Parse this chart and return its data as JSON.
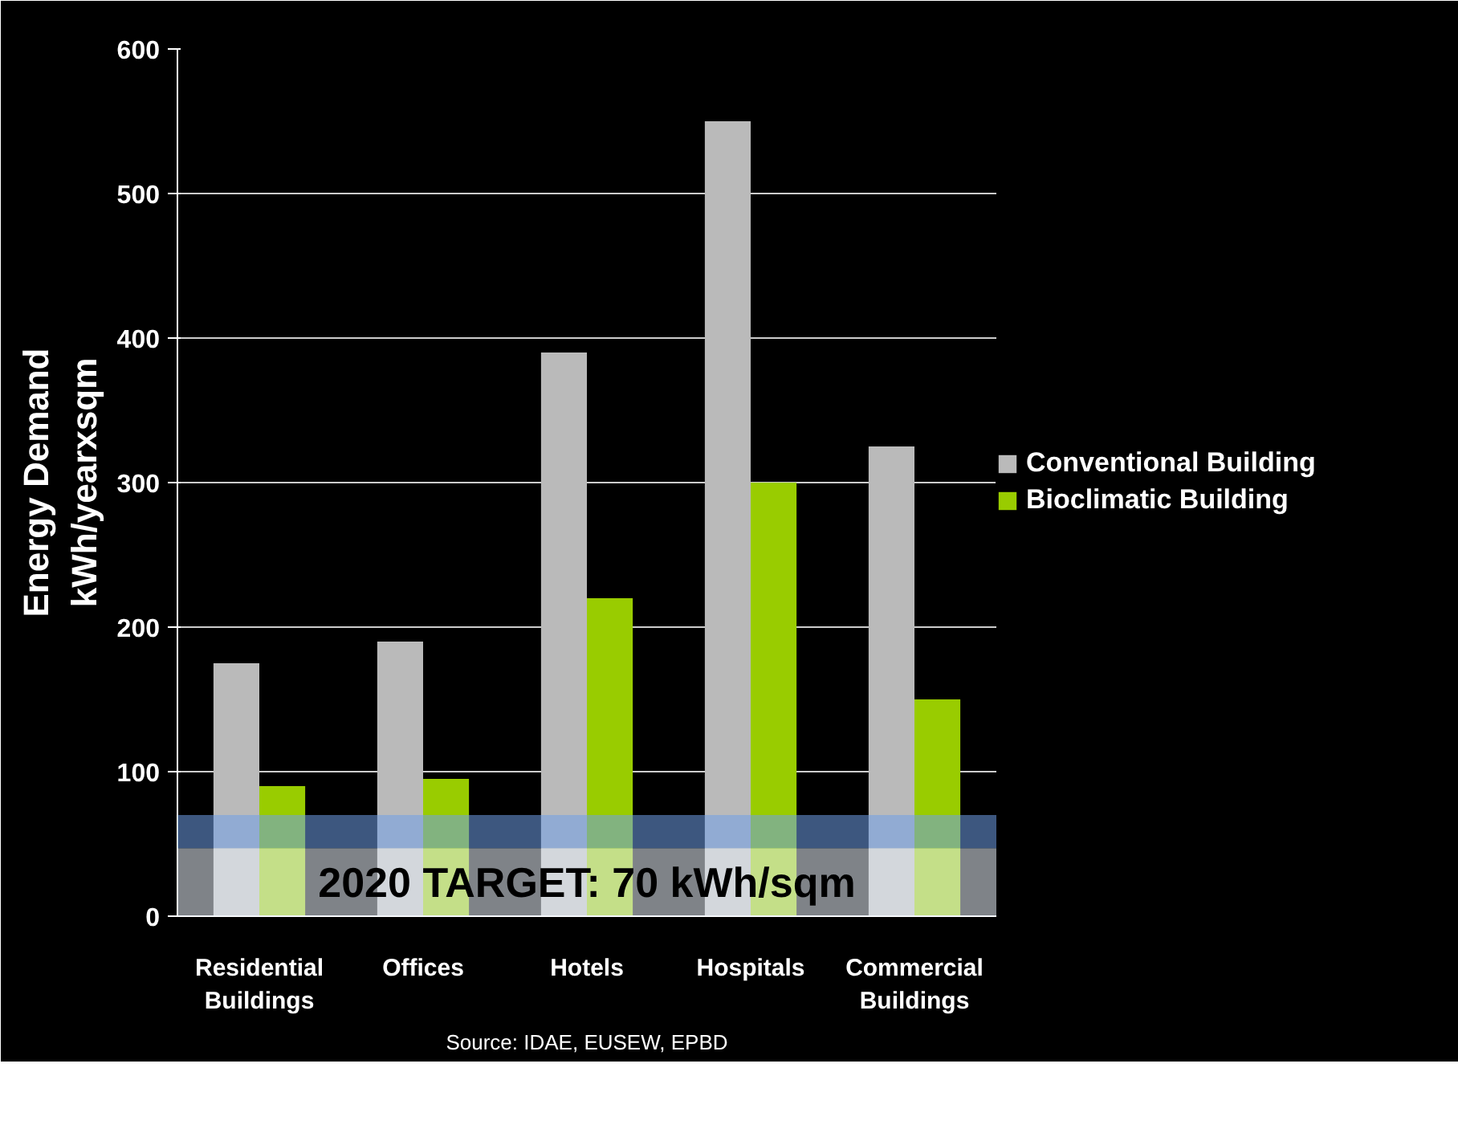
{
  "chart_data": {
    "type": "bar",
    "categories": [
      "Residential\nBuildings",
      "Offices",
      "Hotels",
      "Hospitals",
      "Commercial\nBuildings"
    ],
    "series": [
      {
        "name": "Conventional Building",
        "color": "#bababa",
        "values": [
          175,
          190,
          390,
          550,
          325
        ]
      },
      {
        "name": "Bioclimatic Building",
        "color": "#99cc00",
        "values": [
          90,
          95,
          220,
          300,
          150
        ]
      }
    ],
    "ylabel": "Energy Demand\nkWh/yearxsqm",
    "ylim": [
      0,
      600
    ],
    "yticks": [
      0,
      100,
      200,
      300,
      400,
      500,
      600
    ],
    "grid": "y",
    "legend": "right",
    "bands": [
      {
        "axis": "y",
        "from": 47,
        "to": 70,
        "label": null,
        "color": "#6f9fe8"
      },
      {
        "axis": "y",
        "from": 0,
        "to": 47,
        "label": "2020 TARGET: 70 kWh/sqm",
        "color": "#e8eef8"
      }
    ],
    "annotations": [
      "Source: IDAE, EUSEW, EPBD"
    ]
  }
}
